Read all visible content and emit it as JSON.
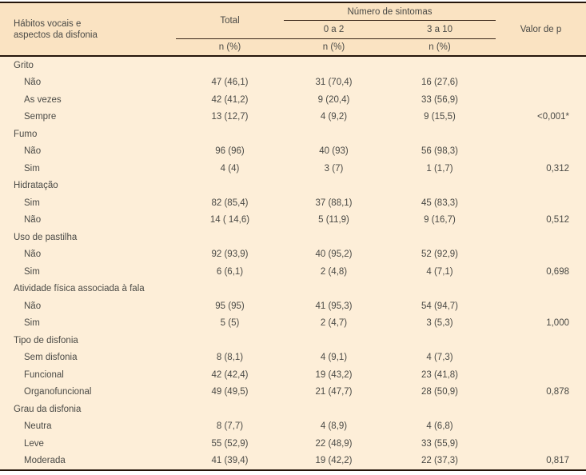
{
  "table": {
    "header": {
      "label_lines": [
        "Hábitos vocais e",
        "aspectos da disfonia"
      ],
      "total": "Total",
      "symptoms_group": "Número de sintomas",
      "sub_0_2": "0 a 2",
      "sub_3_10": "3 a 10",
      "p_value": "Valor de p",
      "n_pct": "n (%)"
    },
    "rows": [
      {
        "type": "group",
        "label": "Grito"
      },
      {
        "type": "item",
        "label": "Não",
        "total": "47 (46,1)",
        "g02": "31 (70,4)",
        "g310": "16 (27,6)",
        "p": ""
      },
      {
        "type": "item",
        "label": "Às vezes",
        "total": "42 (41,2)",
        "g02": "9 (20,4)",
        "g310": "33 (56,9)",
        "p": ""
      },
      {
        "type": "item",
        "label": "Sempre",
        "total": "13 (12,7)",
        "g02": "4 (9,2)",
        "g310": "9 (15,5)",
        "p": "<0,001*"
      },
      {
        "type": "group",
        "label": "Fumo"
      },
      {
        "type": "item",
        "label": "Não",
        "total": "96 (96)",
        "g02": "40 (93)",
        "g310": "56 (98,3)",
        "p": ""
      },
      {
        "type": "item",
        "label": "Sim",
        "total": "4 (4)",
        "g02": "3 (7)",
        "g310": "1 (1,7)",
        "p": "0,312"
      },
      {
        "type": "group",
        "label": "Hidratação"
      },
      {
        "type": "item",
        "label": "Sim",
        "total": "82 (85,4)",
        "g02": "37 (88,1)",
        "g310": "45 (83,3)",
        "p": ""
      },
      {
        "type": "item",
        "label": "Não",
        "total": "14 ( 14,6)",
        "g02": "5 (11,9)",
        "g310": "9 (16,7)",
        "p": "0,512"
      },
      {
        "type": "group",
        "label": "Uso de pastilha"
      },
      {
        "type": "item",
        "label": "Não",
        "total": "92 (93,9)",
        "g02": "40 (95,2)",
        "g310": "52 (92,9)",
        "p": ""
      },
      {
        "type": "item",
        "label": "Sim",
        "total": "6 (6,1)",
        "g02": "2 (4,8)",
        "g310": "4 (7,1)",
        "p": "0,698"
      },
      {
        "type": "group",
        "label": "Atividade física associada à fala"
      },
      {
        "type": "item",
        "label": "Não",
        "total": "95 (95)",
        "g02": "41 (95,3)",
        "g310": "54 (94,7)",
        "p": ""
      },
      {
        "type": "item",
        "label": "Sim",
        "total": "5 (5)",
        "g02": "2 (4,7)",
        "g310": "3 (5,3)",
        "p": "1,000"
      },
      {
        "type": "group",
        "label": "Tipo de disfonia"
      },
      {
        "type": "item",
        "label": "Sem disfonia",
        "total": "8 (8,1)",
        "g02": "4 (9,1)",
        "g310": "4 (7,3)",
        "p": ""
      },
      {
        "type": "item",
        "label": "Funcional",
        "total": "42 (42,4)",
        "g02": "19 (43,2)",
        "g310": "23 (41,8)",
        "p": ""
      },
      {
        "type": "item",
        "label": "Organofuncional",
        "total": "49 (49,5)",
        "g02": "21 (47,7)",
        "g310": "28 (50,9)",
        "p": "0,878"
      },
      {
        "type": "group",
        "label": "Grau da disfonia"
      },
      {
        "type": "item",
        "label": "Neutra",
        "total": "8 (7,7)",
        "g02": "4 (8,9)",
        "g310": "4 (6,8)",
        "p": ""
      },
      {
        "type": "item",
        "label": "Leve",
        "total": "55 (52,9)",
        "g02": "22 (48,9)",
        "g310": "33 (55,9)",
        "p": ""
      },
      {
        "type": "item",
        "label": "Moderada",
        "total": "41 (39,4)",
        "g02": "19 (42,2)",
        "g310": "22 (37,3)",
        "p": "0,817"
      }
    ],
    "colors": {
      "header_bg": "#fae3c2",
      "body_bg": "#fdeed8",
      "border_dark": "#24150a",
      "text": "#4a4a46"
    }
  }
}
